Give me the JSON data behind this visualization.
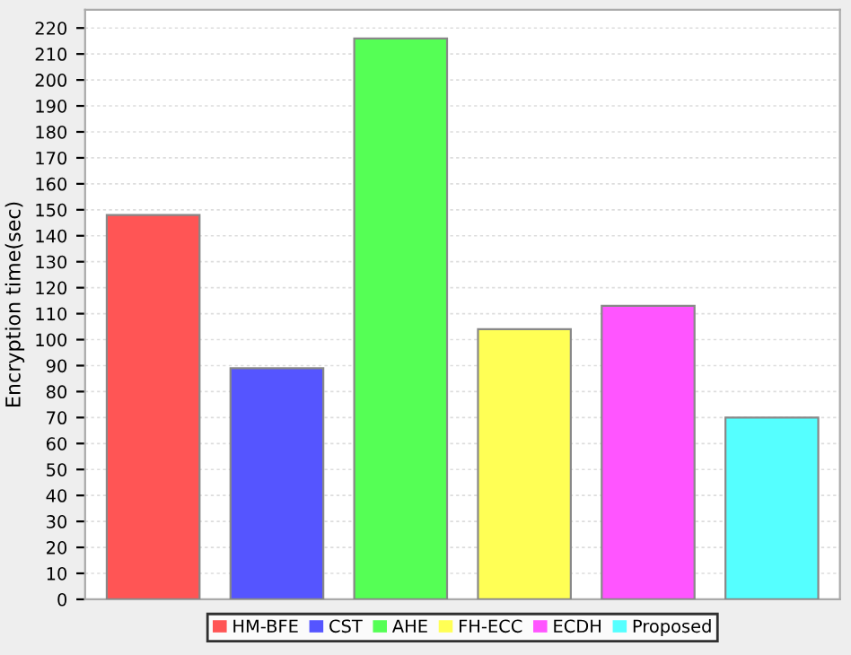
{
  "chart_data": {
    "type": "bar",
    "ylabel": "Encryption time(sec)",
    "categories": [
      null,
      null,
      null,
      null,
      null,
      null
    ],
    "series": [
      {
        "name": "HM-BFE",
        "color": "#ff5555",
        "values": [
          148,
          null,
          null,
          null,
          null,
          null
        ]
      },
      {
        "name": "CST",
        "color": "#5555ff",
        "values": [
          null,
          89,
          null,
          null,
          null,
          null
        ]
      },
      {
        "name": "AHE",
        "color": "#55ff55",
        "values": [
          null,
          null,
          216,
          null,
          null,
          null
        ]
      },
      {
        "name": "FH-ECC",
        "color": "#ffff55",
        "values": [
          null,
          null,
          null,
          104,
          null,
          null
        ]
      },
      {
        "name": "ECDH",
        "color": "#ff55ff",
        "values": [
          null,
          null,
          null,
          null,
          113,
          null
        ]
      },
      {
        "name": "Proposed",
        "color": "#55ffff",
        "values": [
          null,
          null,
          null,
          null,
          null,
          70
        ]
      }
    ],
    "ylim": [
      0,
      227
    ],
    "yticks": [
      0,
      10,
      20,
      30,
      40,
      50,
      60,
      70,
      80,
      90,
      100,
      110,
      120,
      130,
      140,
      150,
      160,
      170,
      180,
      190,
      200,
      210,
      220
    ],
    "grid": "y",
    "legend": "bottom"
  }
}
